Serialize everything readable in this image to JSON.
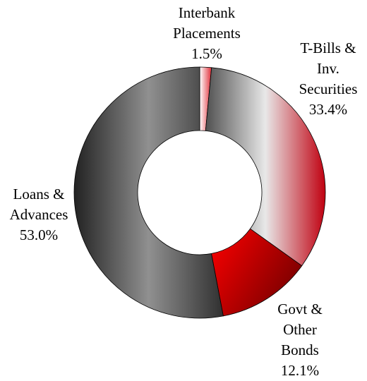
{
  "chart_data": {
    "type": "donut",
    "categories": [
      "Interbank Placements",
      "T-Bills & Inv. Securities",
      "Govt & Other Bonds",
      "Loans & Advances"
    ],
    "values": [
      1.5,
      33.4,
      12.1,
      53.0
    ],
    "value_labels": [
      "1.5%",
      "33.4%",
      "12.1%",
      "53.0%"
    ],
    "colors": [
      [
        "#ffffff",
        "#e0303a"
      ],
      [
        "#505050",
        "#e8e8e8",
        "#c00010"
      ],
      [
        "#ff0000",
        "#7a0000"
      ],
      [
        "#222222",
        "#909090",
        "#303030"
      ]
    ]
  }
}
